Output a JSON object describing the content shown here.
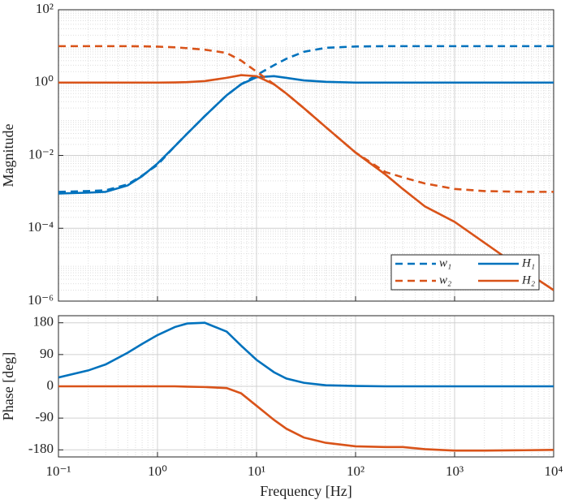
{
  "chart_data": [
    {
      "type": "line",
      "ylabel": "Magnitude",
      "xscale": "log",
      "yscale": "log",
      "grid": true,
      "xlim": [
        0.1,
        10000
      ],
      "xticks": [
        0.1,
        1,
        10,
        100,
        1000,
        10000
      ],
      "ylim": [
        1e-06,
        100
      ],
      "yticks": [
        {
          "value": 1e-06,
          "label": "10⁻⁶"
        },
        {
          "value": 0.0001,
          "label": "10⁻⁴"
        },
        {
          "value": 0.01,
          "label": "10⁻²"
        },
        {
          "value": 1,
          "label": "10⁰"
        },
        {
          "value": 100,
          "label": "10²"
        }
      ],
      "legend": "lower right",
      "x": [
        0.1,
        0.2,
        0.3,
        0.5,
        0.7,
        1,
        1.5,
        2,
        3,
        5,
        7,
        10,
        15,
        20,
        30,
        50,
        100,
        200,
        300,
        500,
        1000,
        2000,
        5000,
        10000
      ],
      "series": [
        {
          "name": "w₁",
          "color": "#0072BD",
          "linestyle": "dashed",
          "values": [
            0.001,
            0.00105,
            0.0011,
            0.0016,
            0.0028,
            0.0055,
            0.018,
            0.04,
            0.12,
            0.45,
            0.9,
            1.6,
            3,
            4.5,
            7,
            9,
            9.8,
            10,
            10,
            10,
            10,
            10,
            10,
            10
          ]
        },
        {
          "name": "H₁",
          "color": "#0072BD",
          "linestyle": "solid",
          "values": [
            0.0009,
            0.00095,
            0.001,
            0.0015,
            0.0027,
            0.006,
            0.018,
            0.04,
            0.12,
            0.45,
            0.9,
            1.4,
            1.5,
            1.35,
            1.15,
            1.05,
            1,
            1,
            1,
            1,
            1,
            1,
            1,
            1
          ]
        },
        {
          "name": "w₂",
          "color": "#D95319",
          "linestyle": "dashed",
          "values": [
            10,
            10,
            10,
            10,
            9.9,
            9.7,
            9.3,
            8.8,
            8,
            6.5,
            4,
            2,
            0.9,
            0.5,
            0.2,
            0.06,
            0.012,
            0.0035,
            0.0025,
            0.0017,
            0.0012,
            0.00105,
            0.001,
            0.001
          ]
        },
        {
          "name": "H₂",
          "color": "#D95319",
          "linestyle": "solid",
          "values": [
            1,
            1,
            1,
            1,
            1,
            1,
            1.01,
            1.03,
            1.1,
            1.35,
            1.6,
            1.5,
            0.9,
            0.5,
            0.2,
            0.06,
            0.012,
            0.003,
            0.0012,
            0.0004,
            0.00015,
            4e-05,
            7e-06,
            2e-06
          ]
        }
      ]
    },
    {
      "type": "line",
      "ylabel": "Phase [deg]",
      "xlabel": "Frequency [Hz]",
      "xscale": "log",
      "grid": true,
      "xlim": [
        0.1,
        10000
      ],
      "xticks": [
        {
          "value": 0.1,
          "label": "10⁻¹"
        },
        {
          "value": 1,
          "label": "10⁰"
        },
        {
          "value": 10,
          "label": "10¹"
        },
        {
          "value": 100,
          "label": "10²"
        },
        {
          "value": 1000,
          "label": "10³"
        },
        {
          "value": 10000,
          "label": "10⁴"
        }
      ],
      "ylim": [
        -200,
        200
      ],
      "yticks": [
        -180,
        -90,
        0,
        90,
        180
      ],
      "x": [
        0.1,
        0.2,
        0.3,
        0.5,
        0.7,
        1,
        1.5,
        2,
        3,
        5,
        7,
        10,
        15,
        20,
        30,
        50,
        100,
        200,
        300,
        500,
        1000,
        2000,
        5000,
        10000
      ],
      "series": [
        {
          "name": "H₁",
          "color": "#0072BD",
          "linestyle": "solid",
          "values": [
            25,
            45,
            62,
            95,
            120,
            145,
            168,
            178,
            180,
            155,
            115,
            75,
            40,
            22,
            10,
            3,
            1,
            0,
            0,
            0,
            0,
            0,
            0,
            0
          ]
        },
        {
          "name": "H₂",
          "color": "#D95319",
          "linestyle": "solid",
          "values": [
            0,
            0,
            0,
            0,
            0,
            0,
            0,
            -1,
            -2,
            -5,
            -20,
            -55,
            -95,
            -120,
            -145,
            -160,
            -170,
            -172,
            -172,
            -178,
            -182,
            -182,
            -181,
            -180
          ]
        }
      ]
    }
  ]
}
